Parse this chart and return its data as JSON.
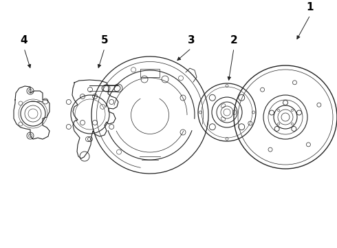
{
  "background_color": "#ffffff",
  "line_color": "#222222",
  "label_color": "#000000",
  "fig_width": 4.9,
  "fig_height": 3.6,
  "dpi": 100
}
